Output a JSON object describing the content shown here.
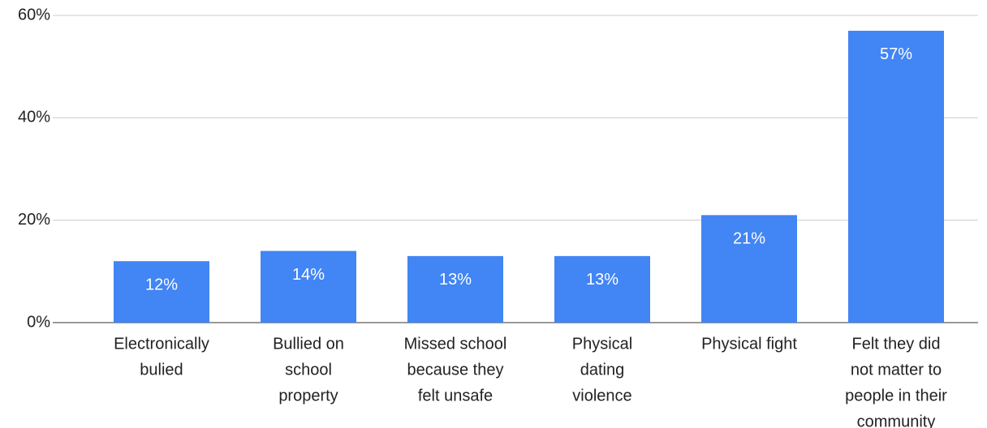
{
  "chart_data": {
    "type": "bar",
    "categories": [
      [
        "Electronically",
        "bulied"
      ],
      [
        "Bullied on",
        "school",
        "property"
      ],
      [
        "Missed school",
        "because they",
        "felt unsafe"
      ],
      [
        "Physical",
        "dating",
        "violence"
      ],
      [
        "Physical fight"
      ],
      [
        "Felt they did",
        "not matter to",
        "people in their",
        "community"
      ]
    ],
    "values": [
      12,
      14,
      13,
      13,
      21,
      57
    ],
    "value_labels": [
      "12%",
      "14%",
      "13%",
      "13%",
      "21%",
      "57%"
    ],
    "color": "#4285f4",
    "ylim": [
      0,
      60
    ],
    "yticks": [
      {
        "value": 0,
        "label": "0%"
      },
      {
        "value": 20,
        "label": "20%"
      },
      {
        "value": 40,
        "label": "40%"
      },
      {
        "value": 60,
        "label": "60%"
      }
    ],
    "grid": true
  }
}
